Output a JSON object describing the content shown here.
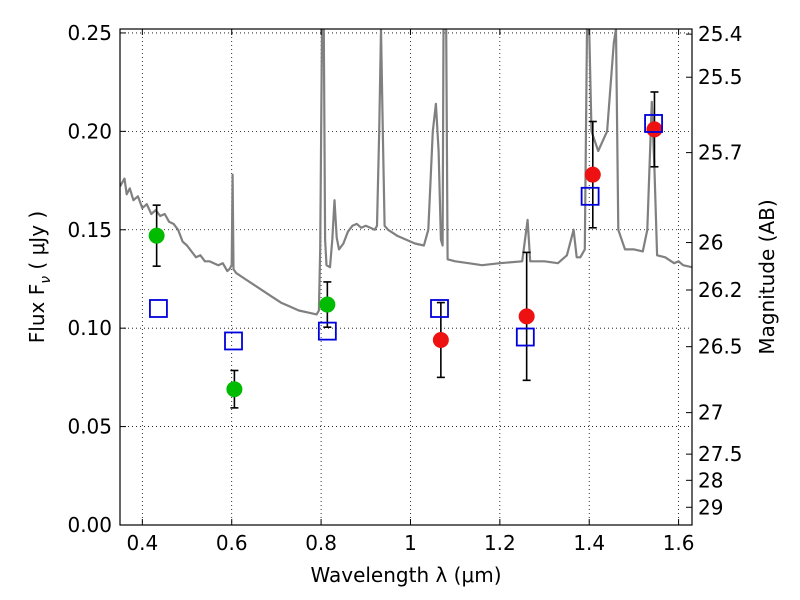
{
  "chart_data": {
    "type": "scatter",
    "title": "",
    "xlabel": "Wavelength  λ (μm)",
    "ylabel_left": "Flux  F",
    "ylabel_left_subscript": "ν",
    "ylabel_left_unit": " ( μJy )",
    "ylabel_right": "Magnitude (AB)",
    "xlim": [
      0.35,
      1.63
    ],
    "ylim": [
      0.0,
      0.252
    ],
    "grid": true,
    "x_ticks": [
      0.4,
      0.6,
      0.8,
      1.0,
      1.2,
      1.4,
      1.6
    ],
    "x_tick_labels": [
      "0.4",
      "0.6",
      "0.8",
      "1",
      "1.2",
      "1.4",
      "1.6"
    ],
    "y_ticks": [
      0.0,
      0.05,
      0.1,
      0.15,
      0.2,
      0.25
    ],
    "y_tick_labels": [
      "0.00",
      "0.05",
      "0.10",
      "0.15",
      "0.20",
      "0.25"
    ],
    "right_ticks": [
      {
        "label": "25.4",
        "flux": 0.2494
      },
      {
        "label": "25.5",
        "flux": 0.2275
      },
      {
        "label": "25.7",
        "flux": 0.1892
      },
      {
        "label": "26",
        "flux": 0.1435
      },
      {
        "label": "26.2",
        "flux": 0.1194
      },
      {
        "label": "26.5",
        "flux": 0.0906
      },
      {
        "label": "27",
        "flux": 0.0571
      },
      {
        "label": "27.5",
        "flux": 0.036
      },
      {
        "label": "28",
        "flux": 0.0227
      },
      {
        "label": "29",
        "flux": 0.009
      }
    ],
    "series": [
      {
        "marker": "circle",
        "color": "#00bb00",
        "points": [
          {
            "x": 0.432,
            "y": 0.147,
            "err": 0.0155
          },
          {
            "x": 0.606,
            "y": 0.069,
            "err": 0.0095
          },
          {
            "x": 0.814,
            "y": 0.112,
            "err": 0.0115
          }
        ]
      },
      {
        "marker": "circle",
        "color": "#ee1111",
        "points": [
          {
            "x": 1.068,
            "y": 0.094,
            "err": 0.019
          },
          {
            "x": 1.26,
            "y": 0.106,
            "err": 0.0325
          },
          {
            "x": 1.408,
            "y": 0.178,
            "err": 0.027
          },
          {
            "x": 1.546,
            "y": 0.201,
            "err": 0.019
          }
        ]
      },
      {
        "marker": "open-square",
        "color": "#0000dd",
        "points": [
          {
            "x": 0.436,
            "y": 0.11
          },
          {
            "x": 0.604,
            "y": 0.0935
          },
          {
            "x": 0.814,
            "y": 0.0985
          },
          {
            "x": 1.065,
            "y": 0.11
          },
          {
            "x": 1.257,
            "y": 0.0955
          },
          {
            "x": 1.402,
            "y": 0.167
          },
          {
            "x": 1.544,
            "y": 0.204
          }
        ]
      }
    ],
    "model_spectrum": {
      "color": "#808080",
      "points": [
        [
          0.35,
          0.172
        ],
        [
          0.36,
          0.176
        ],
        [
          0.365,
          0.168
        ],
        [
          0.372,
          0.171
        ],
        [
          0.38,
          0.165
        ],
        [
          0.39,
          0.167
        ],
        [
          0.4,
          0.161
        ],
        [
          0.41,
          0.163
        ],
        [
          0.42,
          0.158
        ],
        [
          0.43,
          0.16
        ],
        [
          0.44,
          0.157
        ],
        [
          0.45,
          0.158
        ],
        [
          0.46,
          0.154
        ],
        [
          0.47,
          0.153
        ],
        [
          0.48,
          0.15
        ],
        [
          0.49,
          0.144
        ],
        [
          0.5,
          0.142
        ],
        [
          0.51,
          0.139
        ],
        [
          0.52,
          0.136
        ],
        [
          0.53,
          0.137
        ],
        [
          0.54,
          0.134
        ],
        [
          0.55,
          0.134
        ],
        [
          0.56,
          0.133
        ],
        [
          0.57,
          0.132
        ],
        [
          0.58,
          0.133
        ],
        [
          0.59,
          0.129
        ],
        [
          0.595,
          0.13
        ],
        [
          0.6,
          0.132
        ],
        [
          0.602,
          0.178
        ],
        [
          0.604,
          0.13
        ],
        [
          0.61,
          0.128
        ],
        [
          0.63,
          0.125
        ],
        [
          0.65,
          0.122
        ],
        [
          0.67,
          0.119
        ],
        [
          0.69,
          0.116
        ],
        [
          0.71,
          0.113
        ],
        [
          0.73,
          0.111
        ],
        [
          0.75,
          0.109
        ],
        [
          0.77,
          0.108
        ],
        [
          0.79,
          0.107
        ],
        [
          0.795,
          0.109
        ],
        [
          0.798,
          0.14
        ],
        [
          0.802,
          0.252
        ],
        [
          0.806,
          0.252
        ],
        [
          0.809,
          0.145
        ],
        [
          0.812,
          0.132
        ],
        [
          0.82,
          0.131
        ],
        [
          0.825,
          0.145
        ],
        [
          0.83,
          0.165
        ],
        [
          0.835,
          0.146
        ],
        [
          0.84,
          0.14
        ],
        [
          0.85,
          0.143
        ],
        [
          0.86,
          0.149
        ],
        [
          0.87,
          0.152
        ],
        [
          0.88,
          0.153
        ],
        [
          0.89,
          0.151
        ],
        [
          0.9,
          0.152
        ],
        [
          0.91,
          0.151
        ],
        [
          0.92,
          0.15
        ],
        [
          0.925,
          0.152
        ],
        [
          0.93,
          0.2
        ],
        [
          0.934,
          0.252
        ],
        [
          0.938,
          0.2
        ],
        [
          0.942,
          0.152
        ],
        [
          0.95,
          0.15
        ],
        [
          0.97,
          0.147
        ],
        [
          0.99,
          0.145
        ],
        [
          1.01,
          0.143
        ],
        [
          1.03,
          0.142
        ],
        [
          1.04,
          0.15
        ],
        [
          1.05,
          0.2
        ],
        [
          1.057,
          0.214
        ],
        [
          1.063,
          0.19
        ],
        [
          1.068,
          0.145
        ],
        [
          1.072,
          0.142
        ],
        [
          1.074,
          0.252
        ],
        [
          1.08,
          0.252
        ],
        [
          1.083,
          0.135
        ],
        [
          1.1,
          0.134
        ],
        [
          1.13,
          0.133
        ],
        [
          1.16,
          0.132
        ],
        [
          1.2,
          0.133
        ],
        [
          1.25,
          0.134
        ],
        [
          1.262,
          0.155
        ],
        [
          1.268,
          0.134
        ],
        [
          1.3,
          0.134
        ],
        [
          1.33,
          0.133
        ],
        [
          1.35,
          0.137
        ],
        [
          1.365,
          0.15
        ],
        [
          1.372,
          0.136
        ],
        [
          1.38,
          0.136
        ],
        [
          1.39,
          0.14
        ],
        [
          1.395,
          0.252
        ],
        [
          1.4,
          0.252
        ],
        [
          1.405,
          0.2
        ],
        [
          1.42,
          0.19
        ],
        [
          1.44,
          0.2
        ],
        [
          1.455,
          0.245
        ],
        [
          1.46,
          0.252
        ],
        [
          1.465,
          0.15
        ],
        [
          1.48,
          0.14
        ],
        [
          1.5,
          0.14
        ],
        [
          1.52,
          0.139
        ],
        [
          1.53,
          0.15
        ],
        [
          1.54,
          0.215
        ],
        [
          1.546,
          0.18
        ],
        [
          1.552,
          0.137
        ],
        [
          1.57,
          0.136
        ],
        [
          1.59,
          0.133
        ],
        [
          1.6,
          0.134
        ],
        [
          1.61,
          0.132
        ],
        [
          1.63,
          0.131
        ]
      ]
    }
  }
}
